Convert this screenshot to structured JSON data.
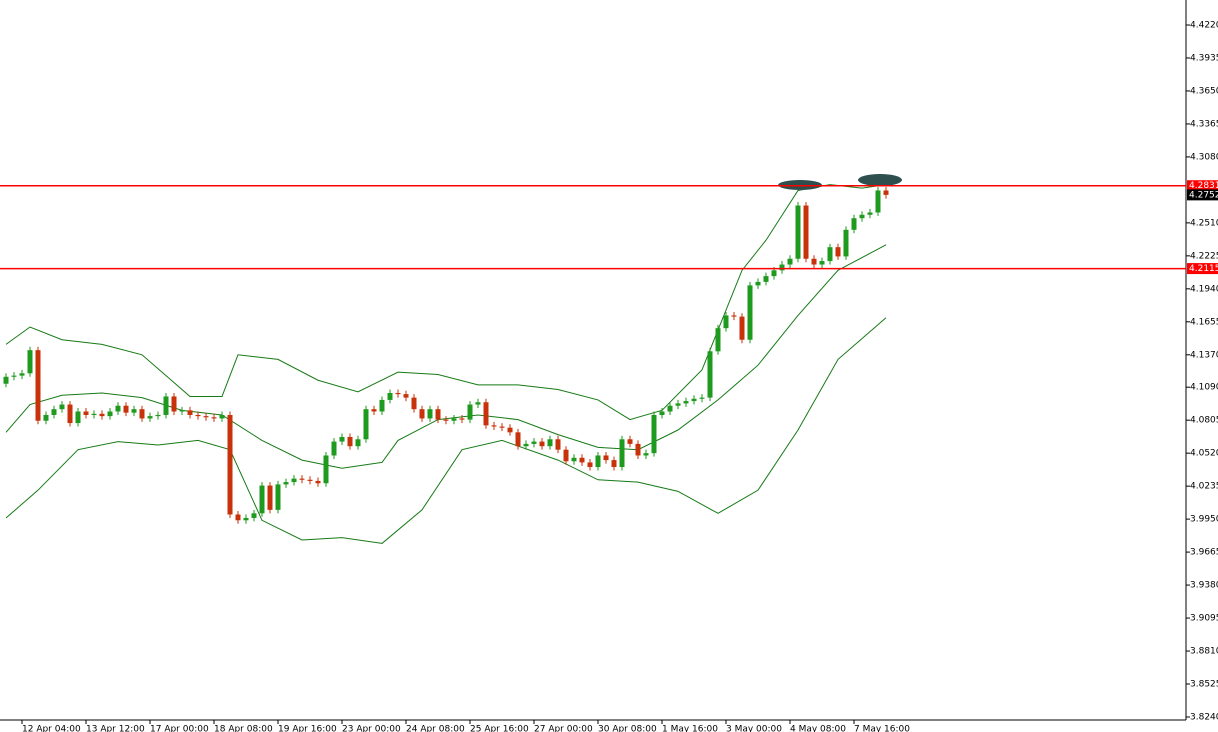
{
  "chart_data": {
    "type": "candlestick",
    "categories": [
      null,
      null,
      "12 Apr 04:00",
      null,
      null,
      null,
      null,
      null,
      null,
      null,
      "13 Apr 12:00",
      null,
      null,
      null,
      null,
      null,
      null,
      null,
      "17 Apr 00:00",
      null,
      null,
      null,
      null,
      null,
      null,
      null,
      "18 Apr 08:00",
      null,
      null,
      null,
      null,
      null,
      null,
      null,
      "19 Apr 16:00",
      null,
      null,
      null,
      null,
      null,
      null,
      null,
      "23 Apr 00:00",
      null,
      null,
      null,
      null,
      null,
      null,
      null,
      "24 Apr 08:00",
      null,
      null,
      null,
      null,
      null,
      null,
      null,
      "25 Apr 16:00",
      null,
      null,
      null,
      null,
      null,
      null,
      null,
      "27 Apr 00:00",
      null,
      null,
      null,
      null,
      null,
      null,
      null,
      "30 Apr 08:00",
      null,
      null,
      null,
      null,
      null,
      null,
      null,
      "1 May 16:00",
      null,
      null,
      null,
      null,
      null,
      null,
      null,
      "3 May 00:00",
      null,
      null,
      null,
      null,
      null,
      null,
      null,
      "4 May 08:00",
      null,
      null,
      null,
      null,
      null,
      null,
      null,
      "7 May 16:00",
      null,
      null,
      null,
      null
    ],
    "open": [
      4.112,
      4.118,
      4.119,
      4.121,
      4.141,
      4.08,
      4.085,
      4.09,
      4.094,
      4.078,
      4.088,
      4.085,
      4.086,
      4.084,
      4.088,
      4.093,
      4.087,
      4.09,
      4.082,
      4.084,
      4.085,
      4.101,
      4.088,
      4.089,
      4.085,
      4.084,
      4.083,
      4.082,
      4.085,
      3.999,
      3.994,
      3.996,
      4.0,
      4.024,
      4.003,
      4.025,
      4.027,
      4.03,
      4.029,
      4.028,
      4.026,
      4.05,
      4.062,
      4.066,
      4.058,
      4.064,
      4.09,
      4.088,
      4.098,
      4.104,
      4.103,
      4.1,
      4.09,
      4.082,
      4.09,
      4.081,
      4.08,
      4.082,
      4.081,
      4.094,
      4.096,
      4.076,
      4.075,
      4.074,
      4.07,
      4.058,
      4.06,
      4.062,
      4.058,
      4.064,
      4.055,
      4.045,
      4.048,
      4.044,
      4.04,
      4.05,
      4.046,
      4.04,
      4.064,
      4.06,
      4.05,
      4.052,
      4.085,
      4.088,
      4.093,
      4.095,
      4.097,
      4.099,
      4.1,
      4.14,
      4.16,
      4.171,
      4.17,
      4.15,
      4.197,
      4.2,
      4.205,
      4.21,
      4.215,
      4.22,
      4.266,
      4.22,
      4.215,
      4.218,
      4.23,
      4.222,
      4.245,
      4.255,
      4.258,
      4.26,
      4.279
    ],
    "high": [
      4.121,
      4.122,
      4.124,
      4.144,
      4.144,
      4.088,
      4.093,
      4.097,
      4.097,
      4.091,
      4.091,
      4.089,
      4.089,
      4.091,
      4.096,
      4.096,
      4.093,
      4.093,
      4.087,
      4.088,
      4.104,
      4.104,
      4.092,
      4.092,
      4.088,
      4.087,
      4.086,
      4.088,
      4.088,
      4.002,
      3.999,
      4.003,
      4.027,
      4.027,
      4.028,
      4.03,
      4.033,
      4.033,
      4.032,
      4.031,
      4.053,
      4.065,
      4.069,
      4.069,
      4.067,
      4.093,
      4.093,
      4.101,
      4.107,
      4.107,
      4.106,
      4.103,
      4.093,
      4.093,
      4.093,
      4.084,
      4.085,
      4.085,
      4.097,
      4.099,
      4.099,
      4.079,
      4.078,
      4.077,
      4.073,
      4.063,
      4.065,
      4.065,
      4.067,
      4.067,
      4.058,
      4.051,
      4.051,
      4.047,
      4.053,
      4.053,
      4.049,
      4.067,
      4.067,
      4.063,
      4.055,
      4.088,
      4.091,
      4.096,
      4.098,
      4.1,
      4.102,
      4.103,
      4.143,
      4.163,
      4.174,
      4.174,
      4.173,
      4.2,
      4.203,
      4.208,
      4.213,
      4.218,
      4.223,
      4.269,
      4.269,
      4.223,
      4.221,
      4.233,
      4.233,
      4.248,
      4.258,
      4.261,
      4.263,
      4.282,
      4.282
    ],
    "low": [
      4.109,
      4.115,
      4.116,
      4.118,
      4.077,
      4.077,
      4.082,
      4.087,
      4.075,
      4.075,
      4.082,
      4.082,
      4.081,
      4.081,
      4.085,
      4.084,
      4.084,
      4.079,
      4.079,
      4.081,
      4.082,
      4.085,
      4.085,
      4.082,
      4.081,
      4.08,
      4.079,
      4.079,
      3.996,
      3.991,
      3.991,
      3.993,
      3.997,
      4.0,
      4.0,
      4.022,
      4.024,
      4.026,
      4.025,
      4.023,
      4.023,
      4.047,
      4.059,
      4.055,
      4.055,
      4.061,
      4.085,
      4.085,
      4.095,
      4.1,
      4.097,
      4.087,
      4.079,
      4.079,
      4.078,
      4.077,
      4.077,
      4.078,
      4.078,
      4.091,
      4.073,
      4.072,
      4.071,
      4.067,
      4.055,
      4.055,
      4.057,
      4.055,
      4.055,
      4.052,
      4.042,
      4.042,
      4.041,
      4.037,
      4.037,
      4.043,
      4.037,
      4.037,
      4.057,
      4.047,
      4.047,
      4.049,
      4.082,
      4.085,
      4.09,
      4.092,
      4.094,
      4.096,
      4.097,
      4.137,
      4.157,
      4.167,
      4.147,
      4.147,
      4.194,
      4.197,
      4.202,
      4.207,
      4.212,
      4.217,
      4.217,
      4.212,
      4.212,
      4.215,
      4.219,
      4.219,
      4.242,
      4.252,
      4.255,
      4.257,
      4.272
    ],
    "close": [
      4.118,
      4.119,
      4.121,
      4.141,
      4.08,
      4.085,
      4.09,
      4.094,
      4.078,
      4.088,
      4.085,
      4.086,
      4.084,
      4.088,
      4.093,
      4.087,
      4.09,
      4.082,
      4.084,
      4.085,
      4.101,
      4.088,
      4.089,
      4.085,
      4.084,
      4.083,
      4.082,
      4.085,
      3.999,
      3.994,
      3.996,
      4.0,
      4.024,
      4.003,
      4.025,
      4.027,
      4.03,
      4.029,
      4.028,
      4.026,
      4.05,
      4.062,
      4.066,
      4.058,
      4.064,
      4.09,
      4.088,
      4.098,
      4.104,
      4.103,
      4.1,
      4.09,
      4.082,
      4.09,
      4.081,
      4.08,
      4.082,
      4.081,
      4.094,
      4.096,
      4.076,
      4.075,
      4.074,
      4.07,
      4.058,
      4.06,
      4.062,
      4.058,
      4.064,
      4.055,
      4.045,
      4.048,
      4.044,
      4.04,
      4.05,
      4.046,
      4.04,
      4.064,
      4.06,
      4.05,
      4.052,
      4.085,
      4.088,
      4.093,
      4.095,
      4.097,
      4.099,
      4.1,
      4.14,
      4.16,
      4.171,
      4.17,
      4.15,
      4.197,
      4.2,
      4.205,
      4.21,
      4.215,
      4.22,
      4.266,
      4.22,
      4.215,
      4.218,
      4.23,
      4.222,
      4.245,
      4.255,
      4.258,
      4.26,
      4.279,
      4.2752
    ],
    "up_color": "#1e9a1e",
    "down_color": "#c8320a",
    "series": [
      {
        "color": "#157a15",
        "x": [
          0,
          3,
          7,
          12,
          17,
          23,
          27,
          29,
          34,
          39,
          44,
          49,
          54,
          59,
          64,
          69,
          74,
          78,
          82,
          87,
          92,
          95,
          99,
          103,
          107,
          110
        ],
        "values": [
          4.146,
          4.161,
          4.15,
          4.146,
          4.137,
          4.101,
          4.101,
          4.137,
          4.133,
          4.115,
          4.105,
          4.122,
          4.12,
          4.111,
          4.111,
          4.107,
          4.098,
          4.081,
          4.089,
          4.124,
          4.21,
          4.236,
          4.279,
          4.284,
          4.281,
          4.284
        ]
      },
      {
        "color": "#157a15",
        "x": [
          0,
          3,
          7,
          12,
          17,
          22,
          27,
          32,
          37,
          42,
          47,
          49,
          54,
          59,
          64,
          69,
          74,
          79,
          84,
          89,
          94,
          99,
          104,
          110
        ],
        "values": [
          4.07,
          4.094,
          4.102,
          4.104,
          4.1,
          4.089,
          4.085,
          4.063,
          4.046,
          4.039,
          4.044,
          4.063,
          4.081,
          4.085,
          4.081,
          4.068,
          4.057,
          4.055,
          4.072,
          4.098,
          4.128,
          4.171,
          4.21,
          4.232
        ]
      },
      {
        "color": "#157a15",
        "x": [
          0,
          4,
          9,
          14,
          19,
          24,
          28,
          32,
          37,
          42,
          47,
          52,
          57,
          62,
          69,
          74,
          79,
          84,
          89,
          94,
          99,
          104,
          110
        ],
        "values": [
          3.996,
          4.02,
          4.055,
          4.062,
          4.059,
          4.063,
          4.055,
          3.994,
          3.977,
          3.979,
          3.974,
          4.003,
          4.055,
          4.063,
          4.046,
          4.029,
          4.027,
          4.019,
          4.0,
          4.02,
          4.072,
          4.133,
          4.169
        ]
      }
    ],
    "levels": [
      4.2831,
      4.2115
    ],
    "level_color": "#ff0000",
    "last_price": 4.2752,
    "ylim": [
      3.8214,
      4.4436
    ],
    "yticks": [
      {
        "value": 4.422,
        "label": "4.4220"
      },
      4.3935,
      {
        "value": 4.365,
        "label": "4.3650"
      },
      4.3365,
      {
        "value": 4.308,
        "label": "4.3080"
      },
      {
        "value": 4.251,
        "label": "4.2510"
      },
      4.2225,
      {
        "value": 4.194,
        "label": "4.1940"
      },
      4.1655,
      {
        "value": 4.137,
        "label": "4.1370"
      },
      {
        "value": 4.109,
        "label": "4.1090"
      },
      4.0805,
      {
        "value": 4.052,
        "label": "4.0520"
      },
      4.0235,
      {
        "value": 3.995,
        "label": "3.9950"
      },
      3.9665,
      {
        "value": 3.938,
        "label": "3.9380"
      },
      3.9095,
      {
        "value": 3.881,
        "label": "3.8810"
      },
      3.8525,
      {
        "value": 3.824,
        "label": "3.8240"
      }
    ]
  }
}
